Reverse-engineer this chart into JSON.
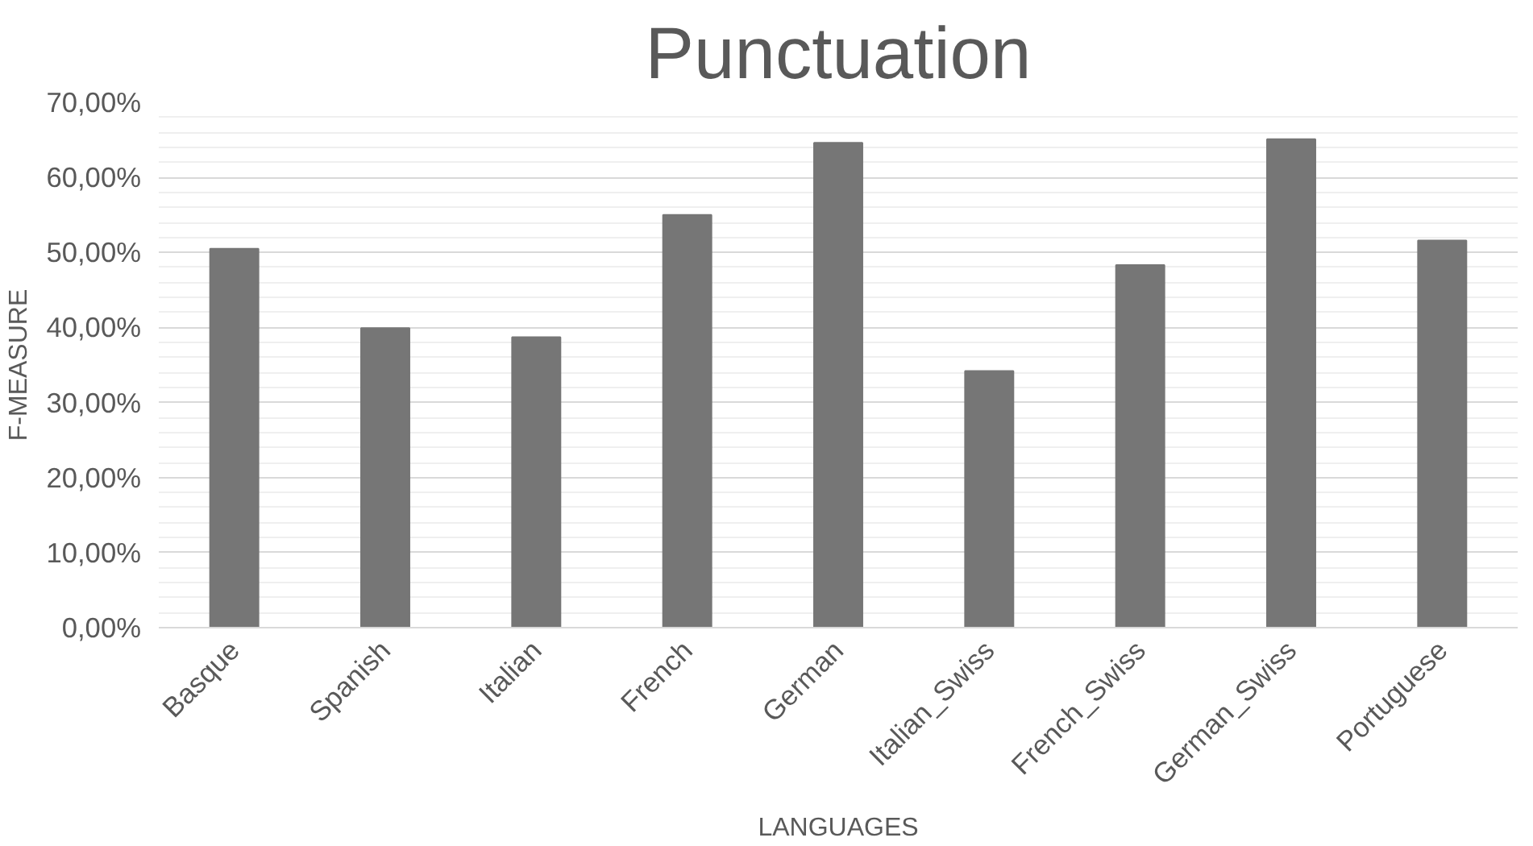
{
  "chart_data": {
    "type": "bar",
    "title": "Punctuation",
    "xlabel": "LANGUAGES",
    "ylabel": "F-MEASURE",
    "categories": [
      "Basque",
      "Spanish",
      "Italian",
      "French",
      "German",
      "Italian_Swiss",
      "French_Swiss",
      "German_Swiss",
      "Portuguese"
    ],
    "values": [
      50.5,
      39.9,
      38.7,
      55.0,
      64.6,
      34.2,
      48.3,
      65.1,
      51.6
    ],
    "color": "#767676",
    "ylim": [
      0,
      70
    ],
    "yticks": [
      {
        "value": 0,
        "label": "0,00%"
      },
      {
        "value": 10,
        "label": "10,00%"
      },
      {
        "value": 20,
        "label": "20,00%"
      },
      {
        "value": 30,
        "label": "30,00%"
      },
      {
        "value": 40,
        "label": "40,00%"
      },
      {
        "value": 50,
        "label": "50,00%"
      },
      {
        "value": 60,
        "label": "60,00%"
      },
      {
        "value": 70,
        "label": "70,00%"
      }
    ],
    "grid": "y"
  }
}
